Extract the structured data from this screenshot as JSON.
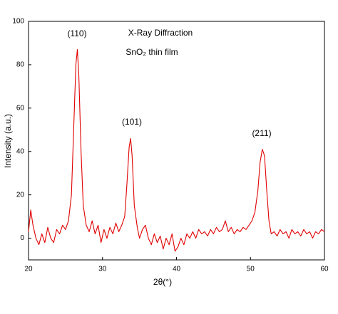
{
  "chart_data": {
    "type": "line",
    "annotations": [
      "(110)",
      "X-Ray Diffraction",
      "SnO₂ thin film",
      "(101)",
      "(211)"
    ],
    "x_label": "2θ(°)",
    "y_label": "Intensity (a.u.)",
    "xlim": [
      20,
      60
    ],
    "xticks": [
      20,
      30,
      40,
      50,
      60
    ],
    "ylim": [
      -10,
      100
    ],
    "yticks": [
      0,
      20,
      40,
      60,
      80,
      100
    ],
    "grid": false,
    "x": [
      20.0,
      20.3,
      20.6,
      21.0,
      21.4,
      21.8,
      22.2,
      22.6,
      23.0,
      23.4,
      23.8,
      24.2,
      24.6,
      25.0,
      25.4,
      25.8,
      26.1,
      26.4,
      26.6,
      26.8,
      27.1,
      27.4,
      27.8,
      28.2,
      28.6,
      29.0,
      29.4,
      29.8,
      30.2,
      30.6,
      31.0,
      31.4,
      31.8,
      32.2,
      32.6,
      33.0,
      33.3,
      33.6,
      33.8,
      34.0,
      34.3,
      34.7,
      35.0,
      35.4,
      35.8,
      36.2,
      36.6,
      37.0,
      37.4,
      37.8,
      38.2,
      38.6,
      39.0,
      39.4,
      39.8,
      40.2,
      40.6,
      41.0,
      41.4,
      41.8,
      42.2,
      42.6,
      43.0,
      43.4,
      43.8,
      44.2,
      44.6,
      45.0,
      45.4,
      45.8,
      46.2,
      46.6,
      47.0,
      47.4,
      47.8,
      48.2,
      48.6,
      49.0,
      49.4,
      49.8,
      50.2,
      50.6,
      51.0,
      51.3,
      51.6,
      51.9,
      52.2,
      52.5,
      52.8,
      53.2,
      53.6,
      54.0,
      54.4,
      54.8,
      55.2,
      55.6,
      56.0,
      56.4,
      56.8,
      57.2,
      57.6,
      58.0,
      58.4,
      58.8,
      59.2,
      59.6,
      60.0
    ],
    "series": [
      {
        "color": "#e00000",
        "values": [
          3,
          13,
          6,
          0,
          -3,
          2,
          -2,
          5,
          0,
          -2,
          4,
          2,
          6,
          4,
          8,
          20,
          50,
          80,
          87,
          75,
          40,
          15,
          6,
          3,
          8,
          2,
          6,
          -2,
          4,
          0,
          5,
          2,
          7,
          3,
          6,
          10,
          25,
          42,
          46,
          38,
          15,
          5,
          0,
          4,
          6,
          0,
          -3,
          2,
          -2,
          1,
          -5,
          0,
          -3,
          2,
          -6,
          -4,
          0,
          -3,
          2,
          0,
          3,
          0,
          4,
          2,
          3,
          1,
          4,
          2,
          5,
          3,
          4,
          8,
          3,
          5,
          2,
          4,
          3,
          5,
          4,
          6,
          8,
          12,
          22,
          35,
          41,
          38,
          22,
          8,
          2,
          3,
          1,
          4,
          2,
          3,
          0,
          4,
          2,
          3,
          1,
          4,
          2,
          3,
          0,
          3,
          2,
          4,
          3
        ]
      }
    ]
  }
}
